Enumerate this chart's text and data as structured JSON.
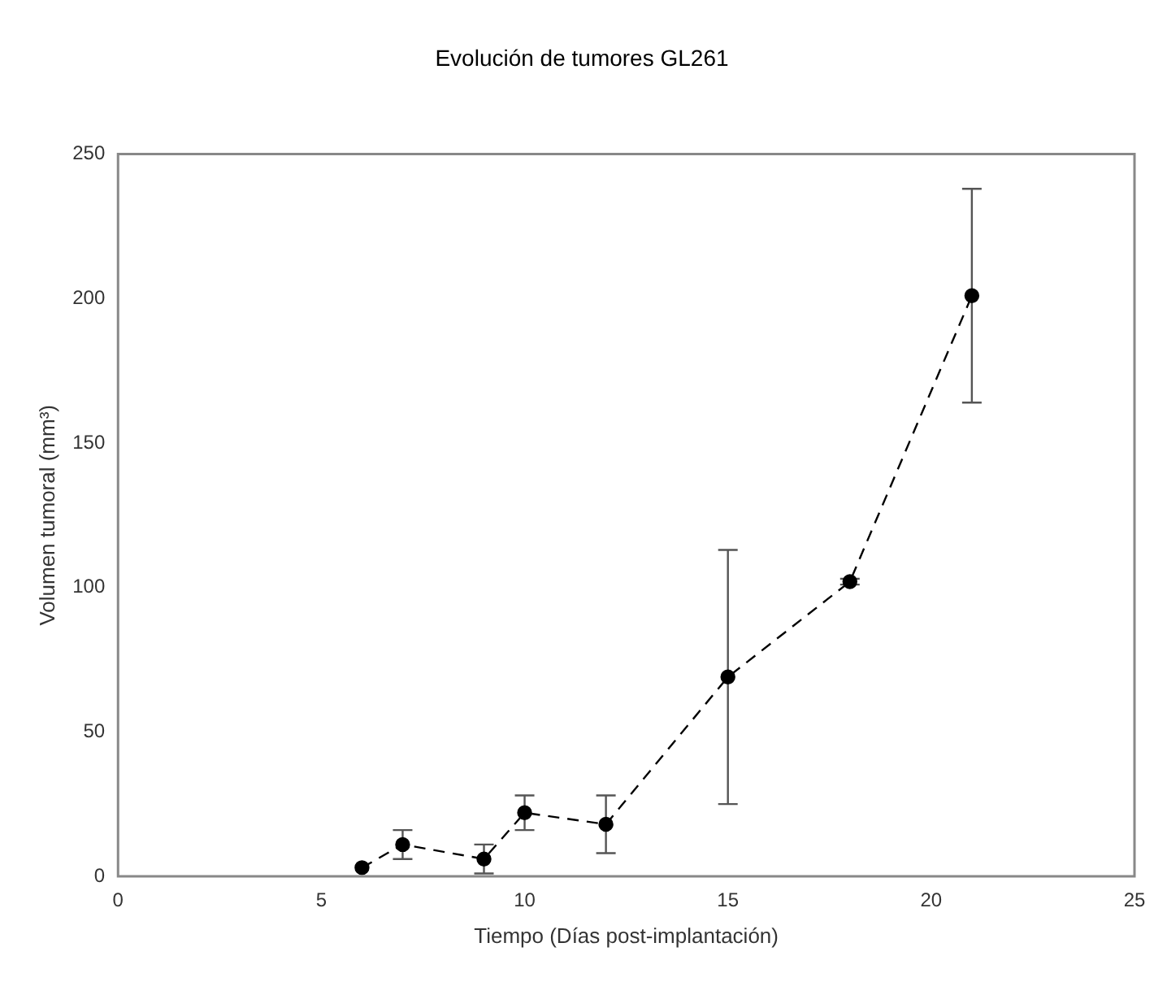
{
  "chart_data": {
    "type": "line",
    "title": "Evolución de tumores GL261",
    "xlabel": "Tiempo (Días post-implantación)",
    "ylabel": "Volumen tumoral (mm³)",
    "x": [
      6,
      7,
      9,
      10,
      12,
      15,
      18,
      21
    ],
    "series": [
      {
        "color": "#000000",
        "values": [
          3,
          11,
          6,
          22,
          18,
          69,
          102,
          201
        ],
        "errors": [
          null,
          5,
          5,
          6,
          10,
          44,
          1,
          37
        ]
      }
    ],
    "xlim": [
      0,
      25
    ],
    "xticks": [
      0,
      5,
      10,
      15,
      20,
      25
    ],
    "ylim": [
      0,
      250
    ],
    "yticks": [
      0,
      50,
      100,
      150,
      200,
      250
    ],
    "grid": false,
    "legend": false,
    "marker": "circle",
    "line_style": "dashed"
  }
}
